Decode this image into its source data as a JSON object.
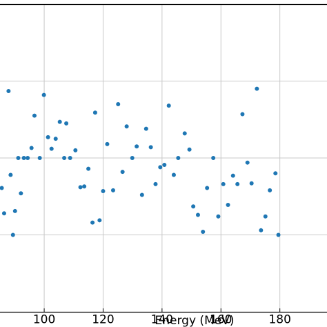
{
  "chart_data": {
    "type": "scatter",
    "title": "",
    "xlabel": "Energy (MeV)",
    "ylabel": "",
    "xlim": [
      85,
      196
    ],
    "ylim": [
      0,
      4
    ],
    "x_ticks": [
      100,
      120,
      140,
      160,
      180
    ],
    "y_grid": [
      1,
      2,
      3
    ],
    "grid": true,
    "marker_color": "#1f77b4",
    "series": [
      {
        "points": [
          [
            85.6,
            1.61
          ],
          [
            86.4,
            1.28
          ],
          [
            87.9,
            2.87
          ],
          [
            88.6,
            1.78
          ],
          [
            89.4,
            1.0
          ],
          [
            90.1,
            1.31
          ],
          [
            91.2,
            2.0
          ],
          [
            92.1,
            1.54
          ],
          [
            93.1,
            2.0
          ],
          [
            94.4,
            2.0
          ],
          [
            95.7,
            2.13
          ],
          [
            96.7,
            2.55
          ],
          [
            98.5,
            2.0
          ],
          [
            99.9,
            2.82
          ],
          [
            101.3,
            2.27
          ],
          [
            102.5,
            2.12
          ],
          [
            103.9,
            2.25
          ],
          [
            105.3,
            2.47
          ],
          [
            106.8,
            2.0
          ],
          [
            107.5,
            2.45
          ],
          [
            108.8,
            2.0
          ],
          [
            110.6,
            2.1
          ],
          [
            112.3,
            1.62
          ],
          [
            113.6,
            1.63
          ],
          [
            115.0,
            1.86
          ],
          [
            116.4,
            1.16
          ],
          [
            117.3,
            2.59
          ],
          [
            118.8,
            1.19
          ],
          [
            120.0,
            1.57
          ],
          [
            121.4,
            2.18
          ],
          [
            123.4,
            1.58
          ],
          [
            125.1,
            2.7
          ],
          [
            126.6,
            1.82
          ],
          [
            128.0,
            2.41
          ],
          [
            129.9,
            2.0
          ],
          [
            131.4,
            2.15
          ],
          [
            133.2,
            1.52
          ],
          [
            134.6,
            2.38
          ],
          [
            136.2,
            2.14
          ],
          [
            137.8,
            1.66
          ],
          [
            139.4,
            1.88
          ],
          [
            140.8,
            1.91
          ],
          [
            142.3,
            2.68
          ],
          [
            144.0,
            1.78
          ],
          [
            145.5,
            2.0
          ],
          [
            147.7,
            2.32
          ],
          [
            149.3,
            2.11
          ],
          [
            150.6,
            1.37
          ],
          [
            152.2,
            1.26
          ],
          [
            153.9,
            1.04
          ],
          [
            155.3,
            1.61
          ],
          [
            157.4,
            2.0
          ],
          [
            159.1,
            1.24
          ],
          [
            160.8,
            1.66
          ],
          [
            162.4,
            1.39
          ],
          [
            164.1,
            1.77
          ],
          [
            165.6,
            1.66
          ],
          [
            167.3,
            2.57
          ],
          [
            169.0,
            1.94
          ],
          [
            170.4,
            1.67
          ],
          [
            172.2,
            2.9
          ],
          [
            173.6,
            1.06
          ],
          [
            175.1,
            1.24
          ],
          [
            176.6,
            1.58
          ],
          [
            178.5,
            1.8
          ],
          [
            179.5,
            1.0
          ]
        ]
      }
    ]
  }
}
